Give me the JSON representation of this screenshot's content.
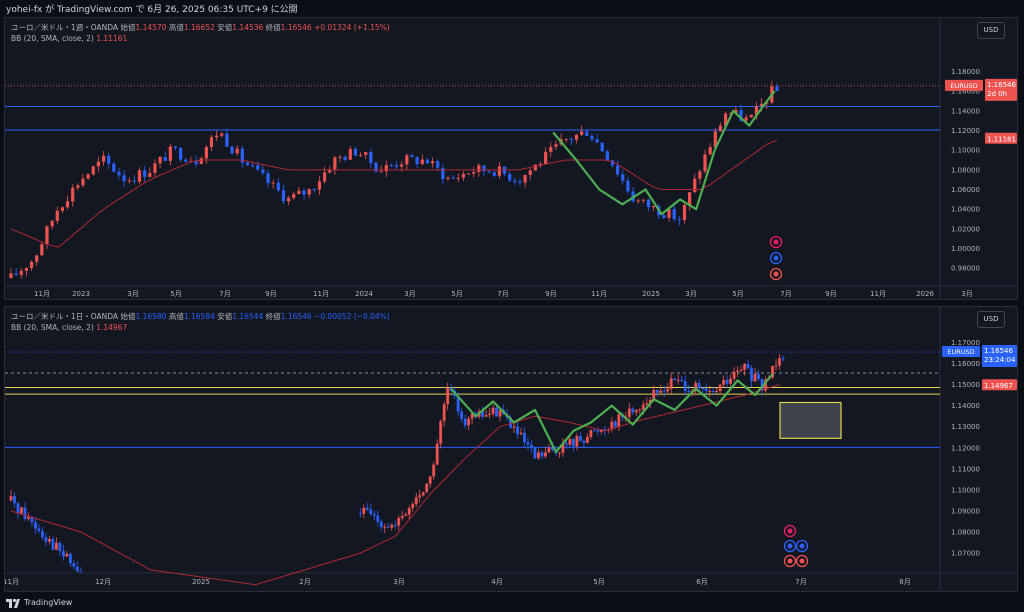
{
  "header": {
    "caption": "yohei-fx が TradingView.com で 6月 26, 2025 06:35 UTC+9 に公開"
  },
  "footer": {
    "brand": "TradingView"
  },
  "panes": [
    {
      "id": "weekly",
      "currency_button": "USD",
      "info": {
        "symbol": "ユーロ／米ドル・1週・OANDA",
        "open_label": "始値",
        "open": "1.14570",
        "high_label": "高値",
        "high": "1.16652",
        "low_label": "安値",
        "low": "1.14536",
        "close_label": "終値",
        "close": "1.16546",
        "change": "+0.01324 (+1.15%)",
        "bb_label": "BB (20, SMA, close, 2)",
        "bb_value": "1.11161"
      },
      "symbol_tag": "EURUSD",
      "price_tag": "1.16546",
      "countdown": "2d 0h",
      "bb_tag": "1.11161",
      "colors": {
        "up": "#ef5350",
        "down": "#2962ff",
        "bb": "#b22833",
        "zigzag": "#4caf50",
        "hline": "#2962ff"
      },
      "chart_data": {
        "type": "candlestick",
        "timeframe": "1W",
        "xlabels": [
          "11月",
          "2023",
          "3月",
          "5月",
          "7月",
          "9月",
          "11月",
          "2024",
          "3月",
          "5月",
          "7月",
          "9月",
          "11月",
          "2025",
          "3月",
          "5月",
          "7月",
          "9月",
          "11月",
          "2026",
          "3月"
        ],
        "ylabels": [
          "1.18000",
          "1.16000",
          "1.14000",
          "1.12000",
          "1.10000",
          "1.08000",
          "1.06000",
          "1.04000",
          "1.02000",
          "1.00000",
          "0.98000"
        ],
        "ylim": [
          0.968,
          1.208
        ],
        "horizontal_lines": [
          1.1445,
          1.1205
        ],
        "last_price": 1.16546,
        "bb_value": 1.11161,
        "series": [
          {
            "name": "price_path",
            "x_months": [
              0,
              1,
              2,
              3,
              4,
              5,
              6,
              7,
              8,
              9,
              10,
              11,
              12,
              13,
              14,
              15,
              16,
              17,
              18,
              19,
              20,
              21,
              22,
              23,
              24,
              25,
              26,
              27,
              28,
              29,
              30,
              31,
              32,
              33
            ],
            "y": [
              0.97,
              0.99,
              1.04,
              1.07,
              1.09,
              1.07,
              1.08,
              1.1,
              1.09,
              1.12,
              1.09,
              1.07,
              1.05,
              1.06,
              1.09,
              1.1,
              1.08,
              1.09,
              1.09,
              1.07,
              1.08,
              1.08,
              1.07,
              1.09,
              1.11,
              1.12,
              1.09,
              1.05,
              1.04,
              1.03,
              1.09,
              1.14,
              1.13,
              1.16
            ]
          },
          {
            "name": "bb_basis",
            "x_months": [
              0,
              2,
              4,
              6,
              8,
              10,
              12,
              14,
              16,
              18,
              20,
              22,
              24,
              26,
              28,
              30,
              33
            ],
            "y": [
              1.02,
              1.0,
              1.04,
              1.07,
              1.09,
              1.09,
              1.08,
              1.08,
              1.08,
              1.08,
              1.08,
              1.08,
              1.09,
              1.09,
              1.06,
              1.06,
              1.11
            ]
          }
        ]
      }
    },
    {
      "id": "daily",
      "currency_button": "USD",
      "info": {
        "symbol": "ユーロ／米ドル・1日・OANDA",
        "open_label": "始値",
        "open": "1.16580",
        "high_label": "高値",
        "high": "1.16584",
        "low_label": "安値",
        "low": "1.16544",
        "close_label": "終値",
        "close": "1.16546",
        "change": "−0.00052 (−0.04%)",
        "bb_label": "BB (20, SMA, close, 2)",
        "bb_value": "1.14967"
      },
      "symbol_tag": "EURUSD",
      "price_tag": "1.16546",
      "countdown": "23:24:04",
      "bb_tag": "1.14967",
      "colors": {
        "up": "#ef5350",
        "down": "#2962ff",
        "bb": "#b22833",
        "zigzag": "#4caf50",
        "hline": "#2962ff",
        "yellow": "#e6d34a"
      },
      "chart_data": {
        "type": "candlestick",
        "timeframe": "1D",
        "xlabels": [
          "11月",
          "12月",
          "2025",
          "2月",
          "3月",
          "4月",
          "5月",
          "6月",
          "7月",
          "8月"
        ],
        "ylabels": [
          "1.17000",
          "1.16000",
          "1.15000",
          "1.14000",
          "1.13000",
          "1.12000",
          "1.11000",
          "1.10000",
          "1.09000",
          "1.08000",
          "1.07000"
        ],
        "ylim": [
          1.0615,
          1.1745
        ],
        "horizontal_lines": [
          1.1202
        ],
        "yellow_lines": [
          1.1486,
          1.1455
        ],
        "dashed_line": 1.1555,
        "rectangle": {
          "y_top": 1.1415,
          "y_bottom": 1.1245
        },
        "last_price": 1.16546,
        "bb_value": 1.14967
      }
    }
  ]
}
